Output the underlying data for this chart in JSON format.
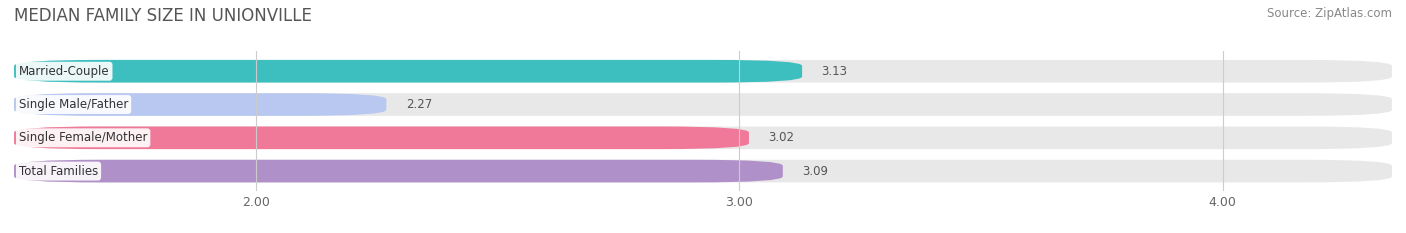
{
  "title": "MEDIAN FAMILY SIZE IN UNIONVILLE",
  "source": "Source: ZipAtlas.com",
  "categories": [
    "Married-Couple",
    "Single Male/Father",
    "Single Female/Mother",
    "Total Families"
  ],
  "values": [
    3.13,
    2.27,
    3.02,
    3.09
  ],
  "bar_colors": [
    "#3dbfbf",
    "#b8c8f0",
    "#f07898",
    "#b090c8"
  ],
  "xlim_min": 1.5,
  "xlim_max": 4.35,
  "data_min": 0.0,
  "xticks": [
    2.0,
    3.0,
    4.0
  ],
  "xtick_labels": [
    "2.00",
    "3.00",
    "4.00"
  ],
  "background_color": "#ffffff",
  "bar_bg_color": "#e8e8e8",
  "title_fontsize": 12,
  "label_fontsize": 8.5,
  "value_fontsize": 8.5,
  "source_fontsize": 8.5,
  "tick_fontsize": 9
}
